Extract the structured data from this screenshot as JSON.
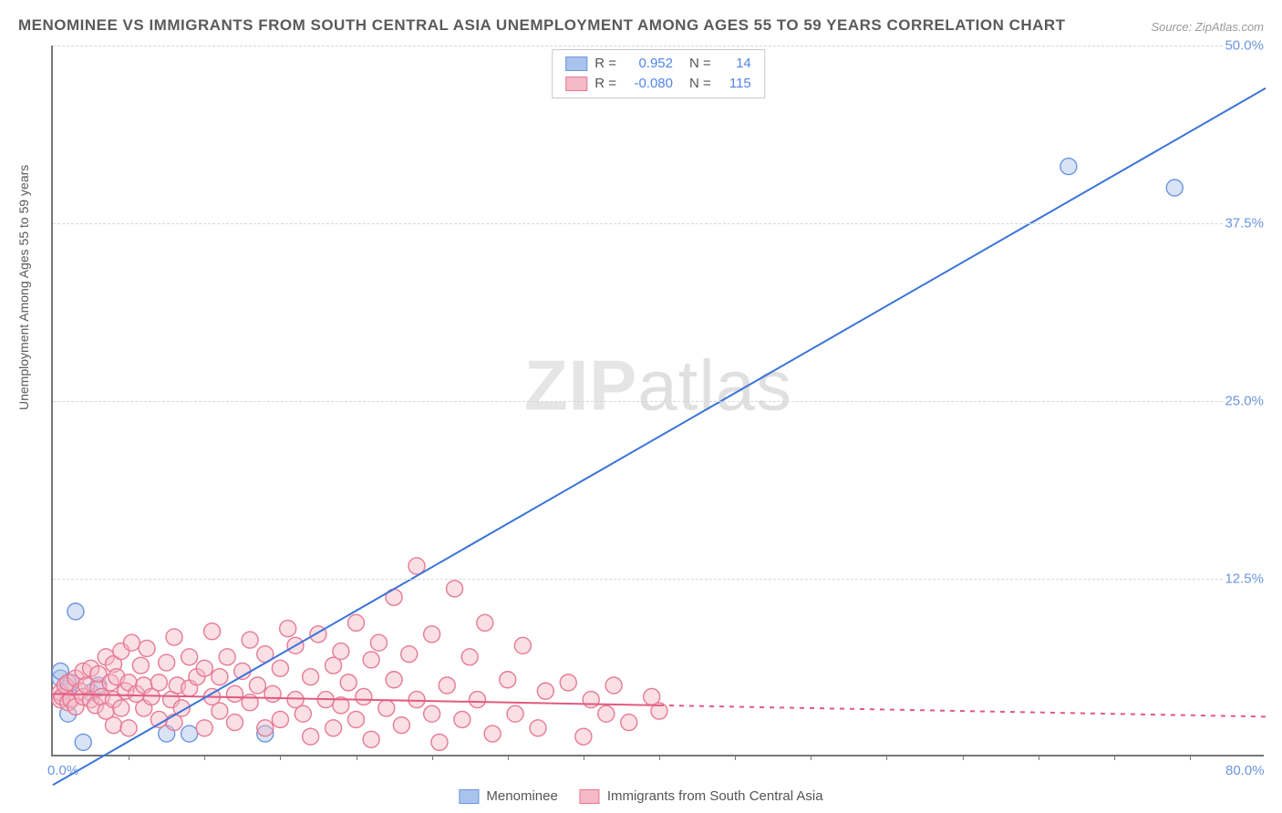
{
  "title": "MENOMINEE VS IMMIGRANTS FROM SOUTH CENTRAL ASIA UNEMPLOYMENT AMONG AGES 55 TO 59 YEARS CORRELATION CHART",
  "source": "Source: ZipAtlas.com",
  "ylabel": "Unemployment Among Ages 55 to 59 years",
  "watermark_a": "ZIP",
  "watermark_b": "atlas",
  "chart": {
    "type": "scatter-correlation",
    "xlim": [
      0,
      80
    ],
    "ylim": [
      0,
      50
    ],
    "x_ticks_major": [
      0,
      80
    ],
    "x_tick_labels": [
      "0.0%",
      "80.0%"
    ],
    "x_ticks_minor": [
      5,
      10,
      15,
      20,
      25,
      30,
      35,
      40,
      45,
      50,
      55,
      60,
      65,
      70,
      75
    ],
    "y_ticks": [
      12.5,
      25.0,
      37.5,
      50.0
    ],
    "y_tick_labels": [
      "12.5%",
      "25.0%",
      "37.5%",
      "50.0%"
    ],
    "grid_color": "#d8d8d8",
    "axis_color": "#777777",
    "background": "#ffffff",
    "axis_label_color": "#6b95e0",
    "marker_radius": 9,
    "marker_opacity": 0.45,
    "line_width": 2,
    "series": [
      {
        "name": "Menominee",
        "color_fill": "#a9c3ec",
        "color_stroke": "#6b95e0",
        "line_color": "#3a74d8",
        "R": "0.952",
        "N": "14",
        "trend": {
          "x1": 0,
          "y1": -2.0,
          "x2": 80,
          "y2": 47.0
        },
        "trend_dash_from_x": null,
        "points": [
          [
            0.5,
            5.5
          ],
          [
            0.5,
            6.0
          ],
          [
            1.0,
            3.0
          ],
          [
            1.0,
            4.8
          ],
          [
            1.2,
            5.2
          ],
          [
            1.5,
            10.2
          ],
          [
            2.0,
            1.0
          ],
          [
            2.5,
            4.5
          ],
          [
            3.0,
            5.0
          ],
          [
            7.5,
            1.6
          ],
          [
            9.0,
            1.6
          ],
          [
            14.0,
            1.6
          ],
          [
            67.0,
            41.5
          ],
          [
            74.0,
            40.0
          ]
        ]
      },
      {
        "name": "Immigrants from South Central Asia",
        "color_fill": "#f3b9c6",
        "color_stroke": "#e67a94",
        "line_color": "#e15a7e",
        "R": "-0.080",
        "N": "115",
        "trend": {
          "x1": 0,
          "y1": 4.4,
          "x2": 80,
          "y2": 2.8
        },
        "trend_dash_from_x": 40,
        "points": [
          [
            0.5,
            4.0
          ],
          [
            0.5,
            4.5
          ],
          [
            0.6,
            4.2
          ],
          [
            0.8,
            5.0
          ],
          [
            1.0,
            3.8
          ],
          [
            1.0,
            5.2
          ],
          [
            1.2,
            4.0
          ],
          [
            1.5,
            5.5
          ],
          [
            1.5,
            3.5
          ],
          [
            1.8,
            4.6
          ],
          [
            2.0,
            6.0
          ],
          [
            2.0,
            4.2
          ],
          [
            2.2,
            5.0
          ],
          [
            2.5,
            4.0
          ],
          [
            2.5,
            6.2
          ],
          [
            2.8,
            3.6
          ],
          [
            3.0,
            4.8
          ],
          [
            3.0,
            5.8
          ],
          [
            3.2,
            4.2
          ],
          [
            3.5,
            7.0
          ],
          [
            3.5,
            3.2
          ],
          [
            3.8,
            5.2
          ],
          [
            4.0,
            4.0
          ],
          [
            4.0,
            6.5
          ],
          [
            4.0,
            2.2
          ],
          [
            4.2,
            5.6
          ],
          [
            4.5,
            3.4
          ],
          [
            4.5,
            7.4
          ],
          [
            4.8,
            4.6
          ],
          [
            5.0,
            5.2
          ],
          [
            5.0,
            2.0
          ],
          [
            5.2,
            8.0
          ],
          [
            5.5,
            4.4
          ],
          [
            5.8,
            6.4
          ],
          [
            6.0,
            3.4
          ],
          [
            6.0,
            5.0
          ],
          [
            6.2,
            7.6
          ],
          [
            6.5,
            4.2
          ],
          [
            7.0,
            2.6
          ],
          [
            7.0,
            5.2
          ],
          [
            7.5,
            6.6
          ],
          [
            7.8,
            4.0
          ],
          [
            8.0,
            8.4
          ],
          [
            8.0,
            2.4
          ],
          [
            8.2,
            5.0
          ],
          [
            8.5,
            3.4
          ],
          [
            9.0,
            7.0
          ],
          [
            9.0,
            4.8
          ],
          [
            9.5,
            5.6
          ],
          [
            10.0,
            2.0
          ],
          [
            10.0,
            6.2
          ],
          [
            10.5,
            4.2
          ],
          [
            10.5,
            8.8
          ],
          [
            11.0,
            3.2
          ],
          [
            11.0,
            5.6
          ],
          [
            11.5,
            7.0
          ],
          [
            12.0,
            4.4
          ],
          [
            12.0,
            2.4
          ],
          [
            12.5,
            6.0
          ],
          [
            13.0,
            3.8
          ],
          [
            13.0,
            8.2
          ],
          [
            13.5,
            5.0
          ],
          [
            14.0,
            2.0
          ],
          [
            14.0,
            7.2
          ],
          [
            14.5,
            4.4
          ],
          [
            15.0,
            6.2
          ],
          [
            15.0,
            2.6
          ],
          [
            15.5,
            9.0
          ],
          [
            16.0,
            4.0
          ],
          [
            16.0,
            7.8
          ],
          [
            16.5,
            3.0
          ],
          [
            17.0,
            5.6
          ],
          [
            17.0,
            1.4
          ],
          [
            17.5,
            8.6
          ],
          [
            18.0,
            4.0
          ],
          [
            18.5,
            6.4
          ],
          [
            18.5,
            2.0
          ],
          [
            19.0,
            7.4
          ],
          [
            19.0,
            3.6
          ],
          [
            19.5,
            5.2
          ],
          [
            20.0,
            9.4
          ],
          [
            20.0,
            2.6
          ],
          [
            20.5,
            4.2
          ],
          [
            21.0,
            6.8
          ],
          [
            21.0,
            1.2
          ],
          [
            21.5,
            8.0
          ],
          [
            22.0,
            3.4
          ],
          [
            22.5,
            5.4
          ],
          [
            22.5,
            11.2
          ],
          [
            23.0,
            2.2
          ],
          [
            23.5,
            7.2
          ],
          [
            24.0,
            4.0
          ],
          [
            24.0,
            13.4
          ],
          [
            25.0,
            3.0
          ],
          [
            25.0,
            8.6
          ],
          [
            25.5,
            1.0
          ],
          [
            26.0,
            5.0
          ],
          [
            26.5,
            11.8
          ],
          [
            27.0,
            2.6
          ],
          [
            27.5,
            7.0
          ],
          [
            28.0,
            4.0
          ],
          [
            28.5,
            9.4
          ],
          [
            29.0,
            1.6
          ],
          [
            30.0,
            5.4
          ],
          [
            30.5,
            3.0
          ],
          [
            31.0,
            7.8
          ],
          [
            32.0,
            2.0
          ],
          [
            32.5,
            4.6
          ],
          [
            34.0,
            5.2
          ],
          [
            35.0,
            1.4
          ],
          [
            35.5,
            4.0
          ],
          [
            36.5,
            3.0
          ],
          [
            37.0,
            5.0
          ],
          [
            38.0,
            2.4
          ],
          [
            39.5,
            4.2
          ],
          [
            40.0,
            3.2
          ]
        ]
      }
    ]
  },
  "stats_box": {
    "r_label": "R =",
    "n_label": "N ="
  },
  "legend": {
    "items": [
      "Menominee",
      "Immigrants from South Central Asia"
    ]
  }
}
